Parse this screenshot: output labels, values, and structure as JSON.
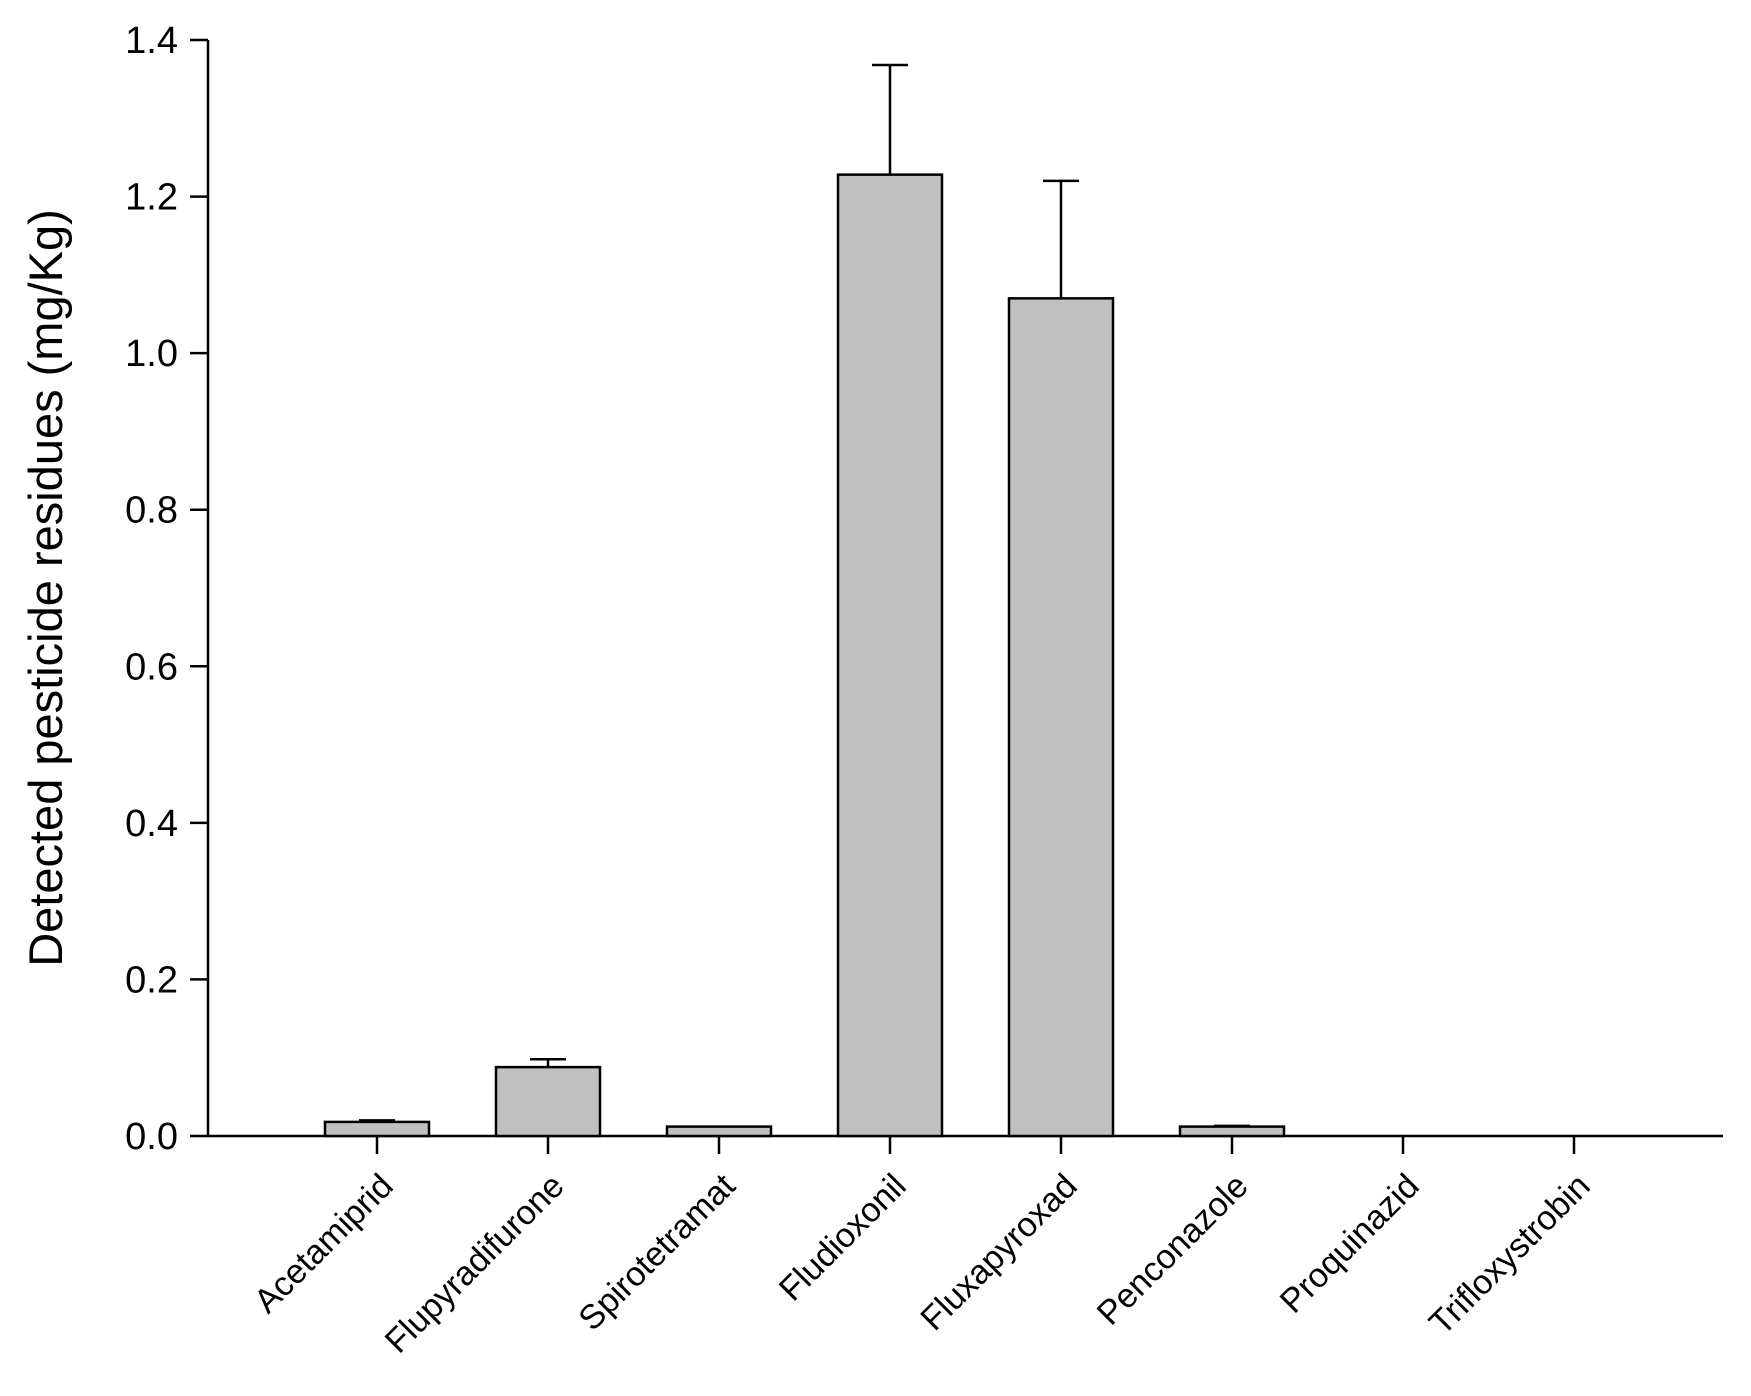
{
  "chart_data": {
    "type": "bar",
    "xlabel": "",
    "ylabel": "Detected pesticide residues (mg/Kg)",
    "ylim": [
      0,
      1.4
    ],
    "yticks": [
      "0.0",
      "0.2",
      "0.4",
      "0.6",
      "0.8",
      "1.0",
      "1.2",
      "1.4"
    ],
    "categories": [
      "Acetamiprid",
      "Flupyradifurone",
      "Spirotetramat",
      "Fludioxonil",
      "Fluxapyroxad",
      "Penconazole",
      "Proquinazid",
      "Trifloxystrobin"
    ],
    "values": [
      0.018,
      0.088,
      0.012,
      1.228,
      1.07,
      0.012,
      0,
      0
    ],
    "errors": [
      0.002,
      0.01,
      0,
      0.14,
      0.15,
      0.001,
      0,
      0
    ],
    "grid": false,
    "colors": {
      "bar_fill": "#c0c0c0",
      "bar_stroke": "#000000",
      "axis": "#000000"
    }
  }
}
